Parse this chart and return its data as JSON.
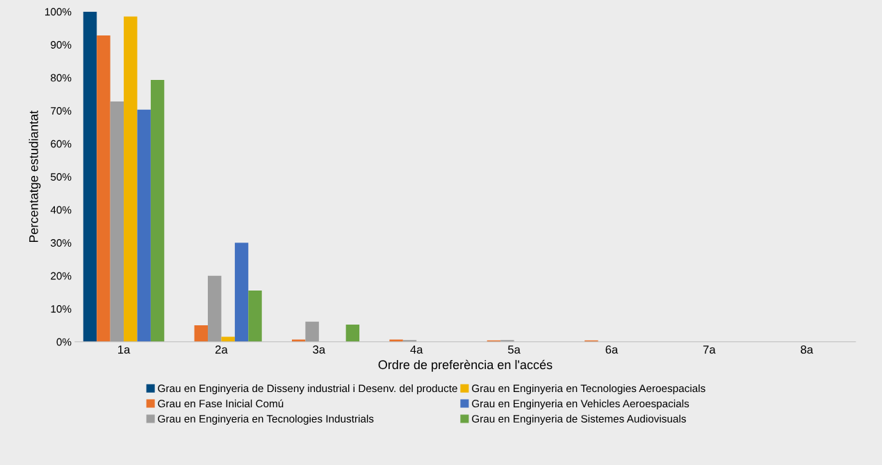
{
  "chart_data": {
    "type": "bar",
    "xlabel": "Ordre de preferència en l'accés",
    "ylabel": "Percentatge estudiantat",
    "categories": [
      "1a",
      "2a",
      "3a",
      "4a",
      "5a",
      "6a",
      "7a",
      "8a"
    ],
    "series": [
      {
        "name": "Grau en Enginyeria de Disseny industrial i Desenv. del producte",
        "color": "#004a7f",
        "values": [
          100,
          0,
          0,
          0,
          0,
          0,
          0,
          0
        ]
      },
      {
        "name": "Grau en Fase Inicial Comú",
        "color": "#e8712a",
        "values": [
          92.8,
          5,
          0.7,
          0.7,
          0.4,
          0.4,
          0,
          0
        ]
      },
      {
        "name": "Grau en Enginyeria en Tecnologies Industrials",
        "color": "#9e9e9e",
        "values": [
          72.8,
          20,
          6.1,
          0.5,
          0.5,
          0,
          0,
          0
        ]
      },
      {
        "name": "Grau en Enginyeria en Tecnologies Aeroespacials",
        "color": "#f0b400",
        "values": [
          98.5,
          1.5,
          0,
          0,
          0,
          0,
          0,
          0
        ]
      },
      {
        "name": "Grau en Enginyeria en Vehicles Aeroespacials",
        "color": "#4270c0",
        "values": [
          70.3,
          30,
          0,
          0,
          0,
          0,
          0,
          0
        ]
      },
      {
        "name": "Grau en Enginyeria de Sistemes Audiovisuals",
        "color": "#6aa342",
        "values": [
          79.3,
          15.5,
          5.2,
          0,
          0,
          0,
          0,
          0
        ]
      }
    ],
    "ylim": [
      0,
      100
    ],
    "yticks": [
      {
        "value": 0,
        "label": "0%"
      },
      {
        "value": 10,
        "label": "10%"
      },
      {
        "value": 20,
        "label": "20%"
      },
      {
        "value": 30,
        "label": "30%"
      },
      {
        "value": 40,
        "label": "40%"
      },
      {
        "value": 50,
        "label": "50%"
      },
      {
        "value": 60,
        "label": "60%"
      },
      {
        "value": 70,
        "label": "70%"
      },
      {
        "value": 80,
        "label": "80%"
      },
      {
        "value": 90,
        "label": "90%"
      },
      {
        "value": 100,
        "label": "100%"
      }
    ],
    "grid": false,
    "legend": "bottom"
  }
}
